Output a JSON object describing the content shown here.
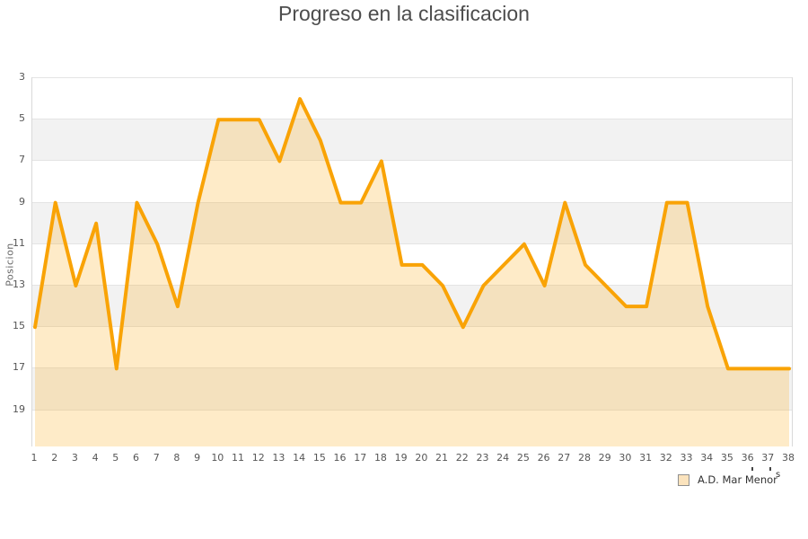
{
  "title": "Progreso en la clasificacion",
  "legend": {
    "label": "A.D. Mar Menor",
    "fragment": "s"
  },
  "chart_data": {
    "type": "area",
    "title": "Progreso en la clasificacion",
    "xlabel": "",
    "ylabel": "Posicion",
    "x": [
      1,
      2,
      3,
      4,
      5,
      6,
      7,
      8,
      9,
      10,
      11,
      12,
      13,
      14,
      15,
      16,
      17,
      18,
      19,
      20,
      21,
      22,
      23,
      24,
      25,
      26,
      27,
      28,
      29,
      30,
      31,
      32,
      33,
      34,
      35,
      36,
      37,
      38
    ],
    "series": [
      {
        "name": "A.D. Mar Menor",
        "values": [
          15,
          9,
          13,
          10,
          17,
          9,
          11,
          14,
          9,
          5,
          5,
          5,
          7,
          4,
          6,
          9,
          9,
          7,
          12,
          12,
          13,
          15,
          13,
          12,
          11,
          13,
          9,
          12,
          13,
          14,
          14,
          9,
          9,
          14,
          17,
          17,
          17,
          17
        ]
      }
    ],
    "y_ticks": [
      3,
      5,
      7,
      9,
      11,
      13,
      15,
      17,
      19
    ],
    "y_axis_inverted": true,
    "ylim": [
      3,
      20.8
    ],
    "grid": "horizontal-bands",
    "legend_position": "bottom-right",
    "colors": {
      "line": "#F9A306",
      "area_fill": "rgba(249,163,6,0.22)",
      "band_white": "#FFFFFF",
      "band_gray": "#F2F2F2",
      "gridline": "#E4E4E4",
      "title_text": "#4D4D4D",
      "tick_text": "#555555",
      "legend_text": "#333333",
      "legend_swatch_fill": "#FBE3BD",
      "legend_swatch_border": "#8F8F8F"
    }
  }
}
